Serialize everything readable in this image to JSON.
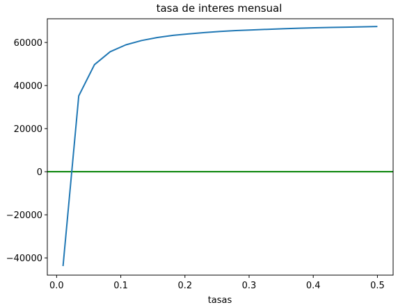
{
  "chart_data": {
    "type": "line",
    "title": "tasa de interes mensual",
    "xlabel": "tasas",
    "ylabel": "",
    "xlim": [
      -0.0145,
      0.5245
    ],
    "ylim": [
      -48000,
      71000
    ],
    "x_ticks": [
      0.0,
      0.1,
      0.2,
      0.3,
      0.4,
      0.5
    ],
    "x_tick_labels": [
      "0.0",
      "0.1",
      "0.2",
      "0.3",
      "0.4",
      "0.5"
    ],
    "y_ticks": [
      -40000,
      -20000,
      0,
      20000,
      40000,
      60000
    ],
    "y_tick_labels": [
      "−40000",
      "−20000",
      "0",
      "20000",
      "40000",
      "60000"
    ],
    "grid": false,
    "series": [
      {
        "color": "#1f77b4",
        "x": [
          0.01,
          0.0345,
          0.059,
          0.0835,
          0.108,
          0.1325,
          0.157,
          0.1815,
          0.206,
          0.2305,
          0.255,
          0.2795,
          0.304,
          0.3285,
          0.353,
          0.3775,
          0.402,
          0.4265,
          0.451,
          0.4755,
          0.5
        ],
        "y": [
          -43800,
          35200,
          49700,
          55700,
          58900,
          60900,
          62300,
          63300,
          64000,
          64600,
          65100,
          65500,
          65800,
          66100,
          66350,
          66600,
          66800,
          66950,
          67100,
          67250,
          67400
        ]
      }
    ],
    "hline": {
      "y": 0,
      "color": "#008000"
    }
  }
}
